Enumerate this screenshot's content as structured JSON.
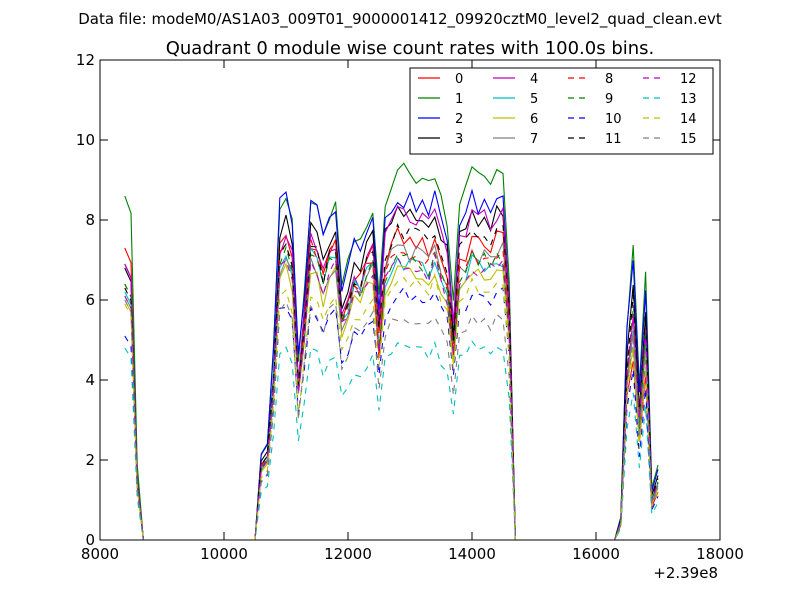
{
  "header": {
    "data_file": "Data file: modeM0/AS1A03_009T01_9000001412_09920cztM0_level2_quad_clean.evt"
  },
  "chart_data": {
    "type": "line",
    "title": "Quadrant 0 module wise count rates with 100.0s bins.",
    "xlabel": "",
    "ylabel": "",
    "x_offset_label": "+2.39e8",
    "xlim": [
      8000,
      18000
    ],
    "ylim": [
      0,
      12
    ],
    "x_ticks": [
      8000,
      10000,
      12000,
      14000,
      16000,
      18000
    ],
    "y_ticks": [
      0,
      2,
      4,
      6,
      8,
      10,
      12
    ],
    "grid": false,
    "legend_position": "top-right",
    "legend_columns": 4,
    "x": [
      8400,
      8500,
      8600,
      8700,
      8800,
      8900,
      9000,
      9100,
      9200,
      9300,
      9400,
      9500,
      9600,
      9700,
      9800,
      9900,
      10000,
      10100,
      10200,
      10300,
      10400,
      10500,
      10600,
      10700,
      10800,
      10900,
      11000,
      11100,
      11200,
      11300,
      11400,
      11500,
      11600,
      11700,
      11800,
      11900,
      12000,
      12100,
      12200,
      12300,
      12400,
      12500,
      12600,
      12700,
      12800,
      12900,
      13000,
      13100,
      13200,
      13300,
      13400,
      13500,
      13600,
      13700,
      13800,
      13900,
      14000,
      14100,
      14200,
      14300,
      14400,
      14500,
      14600,
      14700,
      14800,
      14900,
      15000,
      15100,
      15200,
      15300,
      15400,
      15500,
      15600,
      15700,
      15800,
      15900,
      16000,
      16100,
      16200,
      16300,
      16400,
      16500,
      16600,
      16700,
      16800,
      16900,
      17000
    ],
    "series": [
      {
        "name": "0",
        "color": "#ff0000",
        "dash": "solid",
        "a": 7.3,
        "b": 7.5,
        "c": 7.6,
        "d": 4.6
      },
      {
        "name": "1",
        "color": "#008000",
        "dash": "solid",
        "a": 8.6,
        "b": 8.5,
        "c": 9.3,
        "d": 7.2
      },
      {
        "name": "2",
        "color": "#0000ff",
        "dash": "solid",
        "a": 6.9,
        "b": 8.6,
        "c": 8.6,
        "d": 6.8
      },
      {
        "name": "3",
        "color": "#000000",
        "dash": "solid",
        "a": 6.8,
        "b": 7.9,
        "c": 8.2,
        "d": 6.2
      },
      {
        "name": "4",
        "color": "#bf00bf",
        "dash": "solid",
        "a": 6.9,
        "b": 7.5,
        "c": 8.2,
        "d": 5.5
      },
      {
        "name": "5",
        "color": "#00bfbf",
        "dash": "solid",
        "a": 6.2,
        "b": 7.2,
        "c": 7.0,
        "d": 5.4
      },
      {
        "name": "6",
        "color": "#bfbf00",
        "dash": "solid",
        "a": 6.0,
        "b": 6.8,
        "c": 6.8,
        "d": 5.0
      },
      {
        "name": "7",
        "color": "#808080",
        "dash": "solid",
        "a": 6.1,
        "b": 7.0,
        "c": 7.3,
        "d": 5.2
      },
      {
        "name": "8",
        "color": "#ff0000",
        "dash": "dashed",
        "a": 6.4,
        "b": 7.4,
        "c": 7.2,
        "d": 5.7
      },
      {
        "name": "9",
        "color": "#008000",
        "dash": "dashed",
        "a": 6.4,
        "b": 7.2,
        "c": 7.1,
        "d": 5.6
      },
      {
        "name": "10",
        "color": "#0000ff",
        "dash": "dashed",
        "a": 5.1,
        "b": 5.8,
        "c": 6.2,
        "d": 4.2
      },
      {
        "name": "11",
        "color": "#000000",
        "dash": "dashed",
        "a": 6.3,
        "b": 7.5,
        "c": 7.8,
        "d": 5.9
      },
      {
        "name": "12",
        "color": "#bf00bf",
        "dash": "dashed",
        "a": 6.1,
        "b": 7.1,
        "c": 7.0,
        "d": 5.5
      },
      {
        "name": "13",
        "color": "#00bfbf",
        "dash": "dashed",
        "a": 4.8,
        "b": 4.8,
        "c": 4.9,
        "d": 3.6
      },
      {
        "name": "14",
        "color": "#bfbf00",
        "dash": "dashed",
        "a": 5.9,
        "b": 6.2,
        "c": 6.5,
        "d": 4.7
      },
      {
        "name": "15",
        "color": "#808080",
        "dash": "dashed",
        "a": 6.0,
        "b": 5.9,
        "c": 5.6,
        "d": 4.9
      }
    ],
    "profile_shape": {
      "seg1": [
        1.0,
        0.95,
        0.22,
        0.0
      ],
      "seg2": [
        0.0,
        0.25,
        0.28,
        0.55,
        0.97,
        1.0,
        0.94,
        0.52,
        0.74,
        1.0,
        0.96,
        0.88,
        0.96,
        0.98,
        0.74,
        0.8,
        0.88,
        0.86,
        0.92,
        0.96,
        0.66,
        0.92,
        0.97,
        1.0,
        0.99,
        0.98,
        0.98,
        0.97,
        0.95,
        1.0,
        0.92,
        0.87,
        0.65,
        0.92,
        0.94,
        0.99,
        0.97,
        0.98,
        0.96,
        1.0,
        0.99,
        0.72,
        0.0
      ],
      "seg3": [
        0.0,
        0.08,
        0.75,
        1.0,
        0.52,
        0.93,
        0.18,
        0.26
      ]
    }
  }
}
